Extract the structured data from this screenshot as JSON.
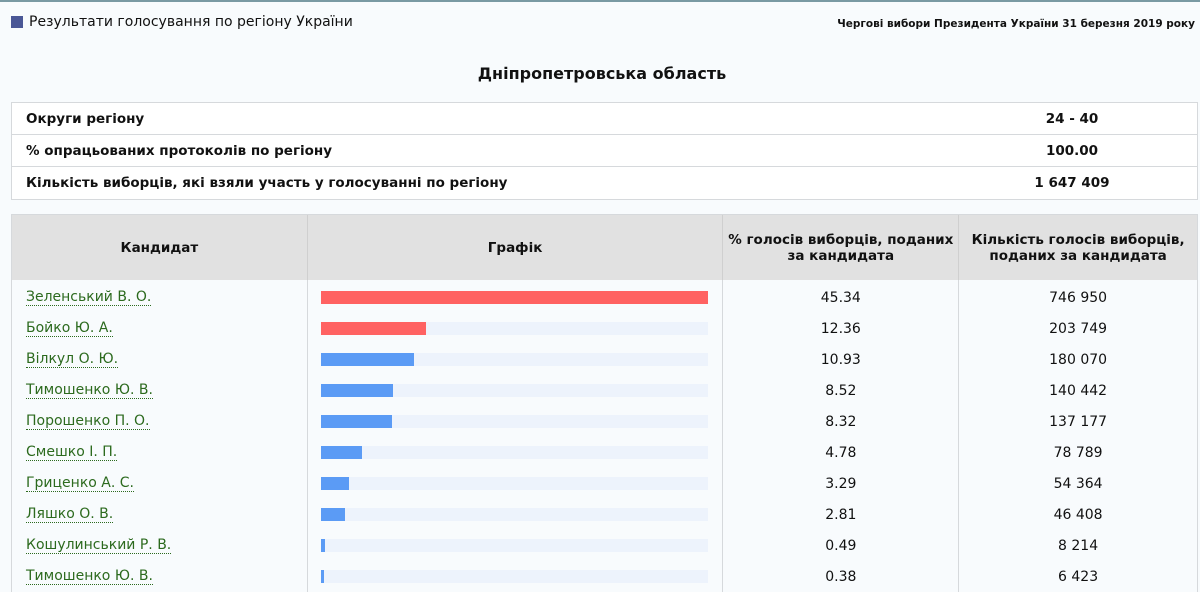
{
  "header": {
    "page_title": "Результати голосування по регіону України",
    "election_title": "Чергові вибори Президента України 31 березня 2019 року",
    "square_color": "#4a5796"
  },
  "region": {
    "title": "Дніпропетровська область"
  },
  "summary": [
    {
      "label": "Округи регіону",
      "value": "24 - 40"
    },
    {
      "label": "% опрацьованих протоколів по регіону",
      "value": "100.00"
    },
    {
      "label": "Кількість виборців, які взяли участь у голосуванні по регіону",
      "value": "1 647 409"
    }
  ],
  "table": {
    "columns": [
      "Кандидат",
      "Графік",
      "% голосів виборців, поданих за кандидата",
      "Кількість голосів виборців, поданих за кандидата"
    ],
    "rows": [
      {
        "name": "Зеленський В. О.",
        "percent": "45.34",
        "votes": "746 950",
        "bar_color": "#ff6262"
      },
      {
        "name": "Бойко Ю. А.",
        "percent": "12.36",
        "votes": "203 749",
        "bar_color": "#ff6262"
      },
      {
        "name": "Вілкул О. Ю.",
        "percent": "10.93",
        "votes": "180 070",
        "bar_color": "#5b9bf5"
      },
      {
        "name": "Тимошенко Ю. В.",
        "percent": "8.52",
        "votes": "140 442",
        "bar_color": "#5b9bf5"
      },
      {
        "name": "Порошенко П. О.",
        "percent": "8.32",
        "votes": "137 177",
        "bar_color": "#5b9bf5"
      },
      {
        "name": "Смешко І. П.",
        "percent": "4.78",
        "votes": "78 789",
        "bar_color": "#5b9bf5"
      },
      {
        "name": "Гриценко А. С.",
        "percent": "3.29",
        "votes": "54 364",
        "bar_color": "#5b9bf5"
      },
      {
        "name": "Ляшко О. В.",
        "percent": "2.81",
        "votes": "46 408",
        "bar_color": "#5b9bf5"
      },
      {
        "name": "Кошулинський Р. В.",
        "percent": "0.49",
        "votes": "8 214",
        "bar_color": "#5b9bf5"
      },
      {
        "name": "Тимошенко Ю. В.",
        "percent": "0.38",
        "votes": "6 423",
        "bar_color": "#5b9bf5"
      }
    ]
  },
  "chart_data": {
    "type": "bar",
    "orientation": "horizontal",
    "title": "Дніпропетровська область",
    "xlabel": "% голосів виборців, поданих за кандидата",
    "ylabel": "Кандидат",
    "categories": [
      "Зеленський В. О.",
      "Бойко Ю. А.",
      "Вілкул О. Ю.",
      "Тимошенко Ю. В.",
      "Порошенко П. О.",
      "Смешко І. П.",
      "Гриценко А. С.",
      "Ляшко О. В.",
      "Кошулинський Р. В.",
      "Тимошенко Ю. В."
    ],
    "series": [
      {
        "name": "% голосів",
        "values": [
          45.34,
          12.36,
          10.93,
          8.52,
          8.32,
          4.78,
          3.29,
          2.81,
          0.49,
          0.38
        ]
      },
      {
        "name": "Кількість голосів",
        "values": [
          746950,
          203749,
          180070,
          140442,
          137177,
          78789,
          54364,
          46408,
          8214,
          6423
        ]
      }
    ],
    "xlim": [
      0,
      45.34
    ],
    "grid": false,
    "legend": "none",
    "colors": {
      "top_two": "#ff6262",
      "others": "#5b9bf5",
      "track": "#edf3fc"
    }
  }
}
